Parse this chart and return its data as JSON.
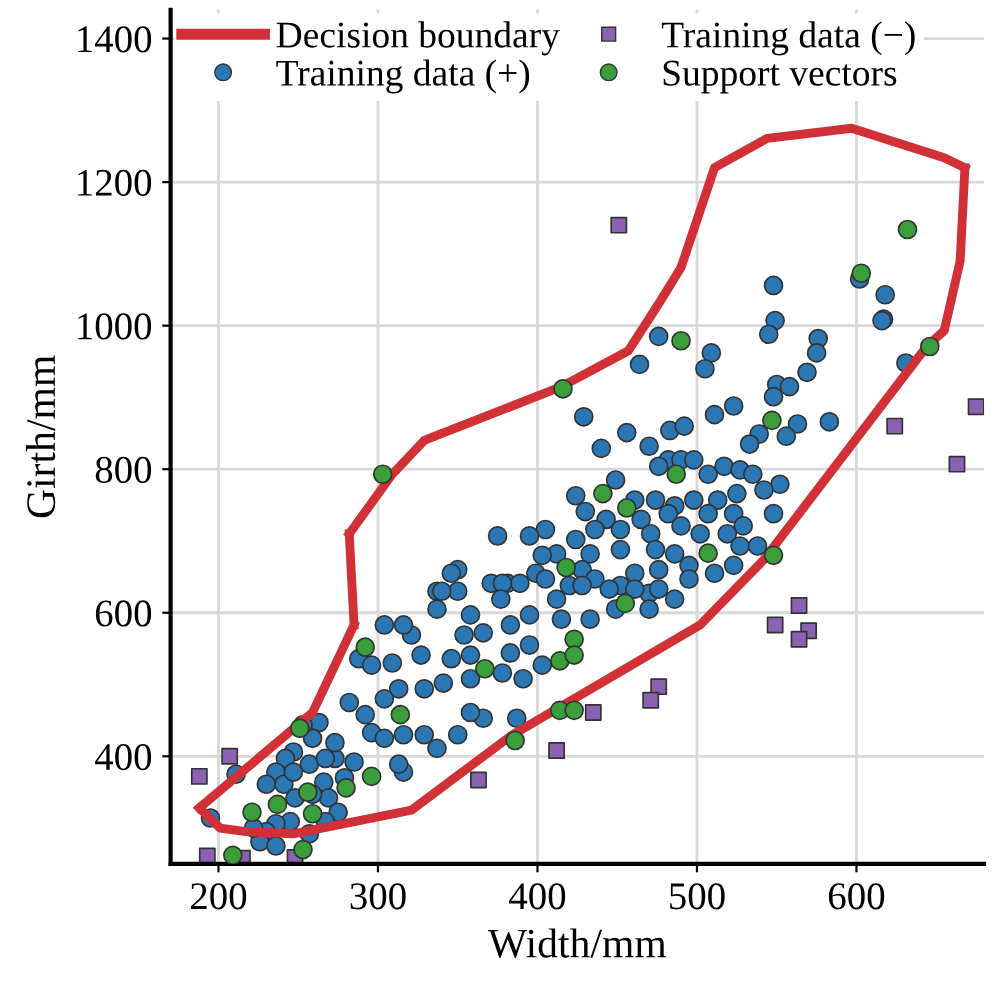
{
  "chart_data": {
    "type": "scatter",
    "xlabel": "Width/mm",
    "ylabel": "Girth/mm",
    "xlim": [
      170,
      680
    ],
    "ylim": [
      250,
      1440
    ],
    "xticks": [
      200,
      300,
      400,
      500,
      600
    ],
    "yticks": [
      400,
      600,
      800,
      1000,
      1200,
      1400
    ],
    "grid": true,
    "legend": "top left",
    "series": [
      {
        "name": "Decision boundary",
        "type": "line",
        "color": "#d03036",
        "marker": "none",
        "line_style": "solid",
        "x": [
          188,
          201,
          217,
          247,
          321,
          383,
          502,
          542,
          644,
          655,
          665,
          668
        ],
        "values": [
          328,
          300,
          295,
          292,
          325,
          428,
          583,
          674,
          971,
          993,
          1090,
          1220
        ]
      },
      {
        "type": "line",
        "color": "#d03036",
        "marker": "none",
        "line_style": "solid",
        "x": [
          282,
          309,
          329,
          415,
          457,
          477,
          490,
          511,
          544,
          597,
          655,
          668
        ],
        "values": [
          710,
          793,
          840,
          915,
          965,
          1034,
          1081,
          1220,
          1261,
          1275,
          1234,
          1220
        ]
      },
      {
        "type": "line",
        "color": "#d03036",
        "marker": "none",
        "line_style": "solid",
        "x": [
          188,
          259,
          285
        ],
        "values": [
          328,
          461,
          583
        ]
      },
      {
        "type": "line",
        "color": "#d03036",
        "marker": "none",
        "line_style": "solid",
        "x": [
          282,
          285
        ],
        "values": [
          710,
          583
        ]
      },
      {
        "name": "Training data (+)",
        "color": "#2a77b4",
        "marker": "circle",
        "x": [
          476,
          509,
          505,
          464,
          549,
          545,
          576,
          575,
          569,
          550,
          558,
          548,
          523,
          511,
          429,
          456,
          483,
          492,
          470,
          563,
          583,
          539,
          533,
          556,
          440,
          617,
          631,
          548,
          602,
          618,
          616,
          482,
          490,
          498,
          476,
          507,
          517,
          527,
          535,
          552,
          542,
          525,
          513,
          498,
          486,
          474,
          461,
          449,
          424,
          430,
          443,
          465,
          482,
          507,
          523,
          548,
          529,
          519,
          502,
          490,
          471,
          452,
          436,
          424,
          405,
          395,
          375,
          412,
          433,
          452,
          474,
          486,
          527,
          538,
          403,
          399,
          350,
          346,
          337,
          350,
          371,
          381,
          389,
          428,
          436,
          461,
          476,
          495,
          523,
          452,
          470,
          420,
          340,
          378,
          377,
          405,
          412,
          428,
          445,
          461,
          476,
          495,
          511,
          486,
          470,
          449,
          433,
          415,
          395,
          383,
          358,
          337,
          366,
          354,
          321,
          304,
          316,
          288,
          296,
          309,
          327,
          346,
          358,
          383,
          395,
          403,
          391,
          378,
          358,
          341,
          329,
          313,
          304,
          292,
          282,
          296,
          304,
          316,
          329,
          337,
          350,
          366,
          387,
          358,
          316,
          313,
          285,
          273,
          279,
          263,
          259,
          247,
          242,
          236,
          230,
          241,
          248,
          266,
          269,
          275,
          267,
          245,
          236,
          230,
          226,
          236,
          257,
          222,
          195,
          211,
          253,
          257,
          259,
          247,
          273,
          267
        ],
        "values": [
          985,
          962,
          940,
          946,
          1007,
          988,
          982,
          962,
          935,
          918,
          915,
          901,
          888,
          876,
          873,
          851,
          854,
          860,
          832,
          863,
          866,
          849,
          835,
          846,
          829,
          1009,
          948,
          1056,
          1065,
          1043,
          1007,
          813,
          813,
          813,
          804,
          793,
          804,
          799,
          793,
          779,
          771,
          766,
          757,
          757,
          749,
          757,
          757,
          785,
          763,
          741,
          730,
          730,
          738,
          738,
          738,
          738,
          721,
          710,
          710,
          721,
          710,
          716,
          716,
          702,
          716,
          707,
          707,
          682,
          682,
          688,
          688,
          682,
          693,
          693,
          680,
          655,
          660,
          655,
          630,
          630,
          641,
          641,
          641,
          660,
          647,
          655,
          660,
          666,
          666,
          638,
          627,
          638,
          630,
          641,
          619,
          647,
          619,
          638,
          633,
          633,
          633,
          647,
          655,
          619,
          605,
          605,
          591,
          591,
          597,
          583,
          597,
          605,
          572,
          569,
          569,
          583,
          583,
          536,
          527,
          530,
          541,
          536,
          541,
          544,
          555,
          527,
          508,
          516,
          508,
          502,
          494,
          494,
          480,
          458,
          475,
          433,
          425,
          430,
          430,
          411,
          430,
          453,
          453,
          461,
          378,
          389,
          392,
          397,
          370,
          447,
          425,
          406,
          397,
          378,
          361,
          361,
          342,
          364,
          342,
          322,
          309,
          309,
          306,
          295,
          281,
          275,
          292,
          300,
          314,
          375,
          444,
          389,
          347,
          378,
          419,
          397
        ]
      },
      {
        "name": "Training data (−)",
        "color": "#8a62b0",
        "marker": "square",
        "x": [
          451,
          675,
          624,
          663,
          564,
          549,
          570,
          564,
          476,
          471,
          435,
          412,
          363,
          207,
          188,
          193,
          215,
          248
        ],
        "values": [
          1140,
          887,
          860,
          807,
          610,
          583,
          575,
          563,
          497,
          478,
          461,
          408,
          367,
          400,
          372,
          261,
          258,
          259
        ]
      },
      {
        "name": "Support vectors",
        "color": "#3a9e3a",
        "marker": "circle",
        "x": [
          603,
          632,
          490,
          416,
          303,
          646,
          547,
          487,
          441,
          456,
          418,
          507,
          548,
          455,
          423,
          414,
          423,
          367,
          292,
          314,
          251,
          414,
          423,
          386,
          296,
          256,
          237,
          280,
          259,
          221,
          253,
          209
        ],
        "values": [
          1073,
          1134,
          979,
          912,
          793,
          971,
          868,
          793,
          766,
          746,
          663,
          683,
          680,
          613,
          563,
          533,
          541,
          522,
          552,
          458,
          439,
          464,
          464,
          422,
          372,
          350,
          333,
          356,
          320,
          322,
          270,
          262
        ]
      }
    ]
  }
}
